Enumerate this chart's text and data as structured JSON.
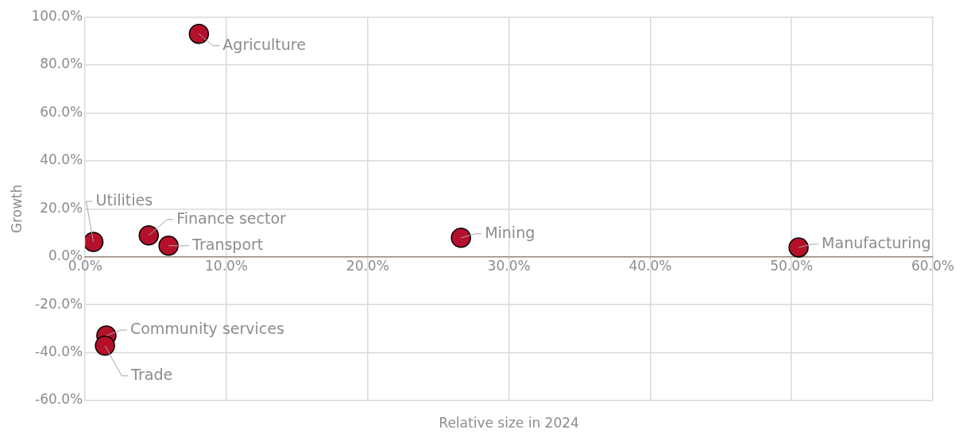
{
  "chart_data": {
    "type": "scatter",
    "xlabel": "Relative size in 2024",
    "ylabel": "Growth",
    "x": [
      8.05,
      0.58,
      4.5,
      5.9,
      26.6,
      50.5,
      1.5,
      1.4
    ],
    "series": [
      {
        "color": "#b5102b",
        "values": [
          93.0,
          6.2,
          8.9,
          4.6,
          7.9,
          3.9,
          -32.9,
          -37.1
        ]
      }
    ],
    "xlim": [
      0,
      60
    ],
    "xticks": [
      {
        "value": 0,
        "label": "0.0%"
      },
      {
        "value": 10,
        "label": "10.0%"
      },
      {
        "value": 20,
        "label": "20.0%"
      },
      {
        "value": 30,
        "label": "30.0%"
      },
      {
        "value": 40,
        "label": "40.0%"
      },
      {
        "value": 50,
        "label": "50.0%"
      },
      {
        "value": 60,
        "label": "60.0%"
      }
    ],
    "ylim": [
      -60,
      100
    ],
    "yticks": [
      {
        "value": -60,
        "label": "-60.0%"
      },
      {
        "value": -40,
        "label": "-40.0%"
      },
      {
        "value": -20,
        "label": "-20.0%"
      },
      {
        "value": 0,
        "label": "0.0%"
      },
      {
        "value": 20,
        "label": "20.0%"
      },
      {
        "value": 40,
        "label": "40.0%"
      },
      {
        "value": 60,
        "label": "60.0%"
      },
      {
        "value": 80,
        "label": "80.0%"
      },
      {
        "value": 100,
        "label": "100.0%"
      }
    ],
    "grid": true,
    "legend": false,
    "marker": "circle",
    "annotations": [
      {
        "text": "Agriculture",
        "x": 8.05,
        "y": 93.0
      },
      {
        "text": "Utilities",
        "x": 0.58,
        "y": 6.2
      },
      {
        "text": "Finance sector",
        "x": 4.5,
        "y": 8.9
      },
      {
        "text": "Transport",
        "x": 5.9,
        "y": 4.6
      },
      {
        "text": "Mining",
        "x": 26.6,
        "y": 7.9
      },
      {
        "text": "Manufacturing",
        "x": 50.5,
        "y": 3.9
      },
      {
        "text": "Community services",
        "x": 1.5,
        "y": -32.9
      },
      {
        "text": "Trade",
        "x": 1.4,
        "y": -37.1
      }
    ]
  }
}
